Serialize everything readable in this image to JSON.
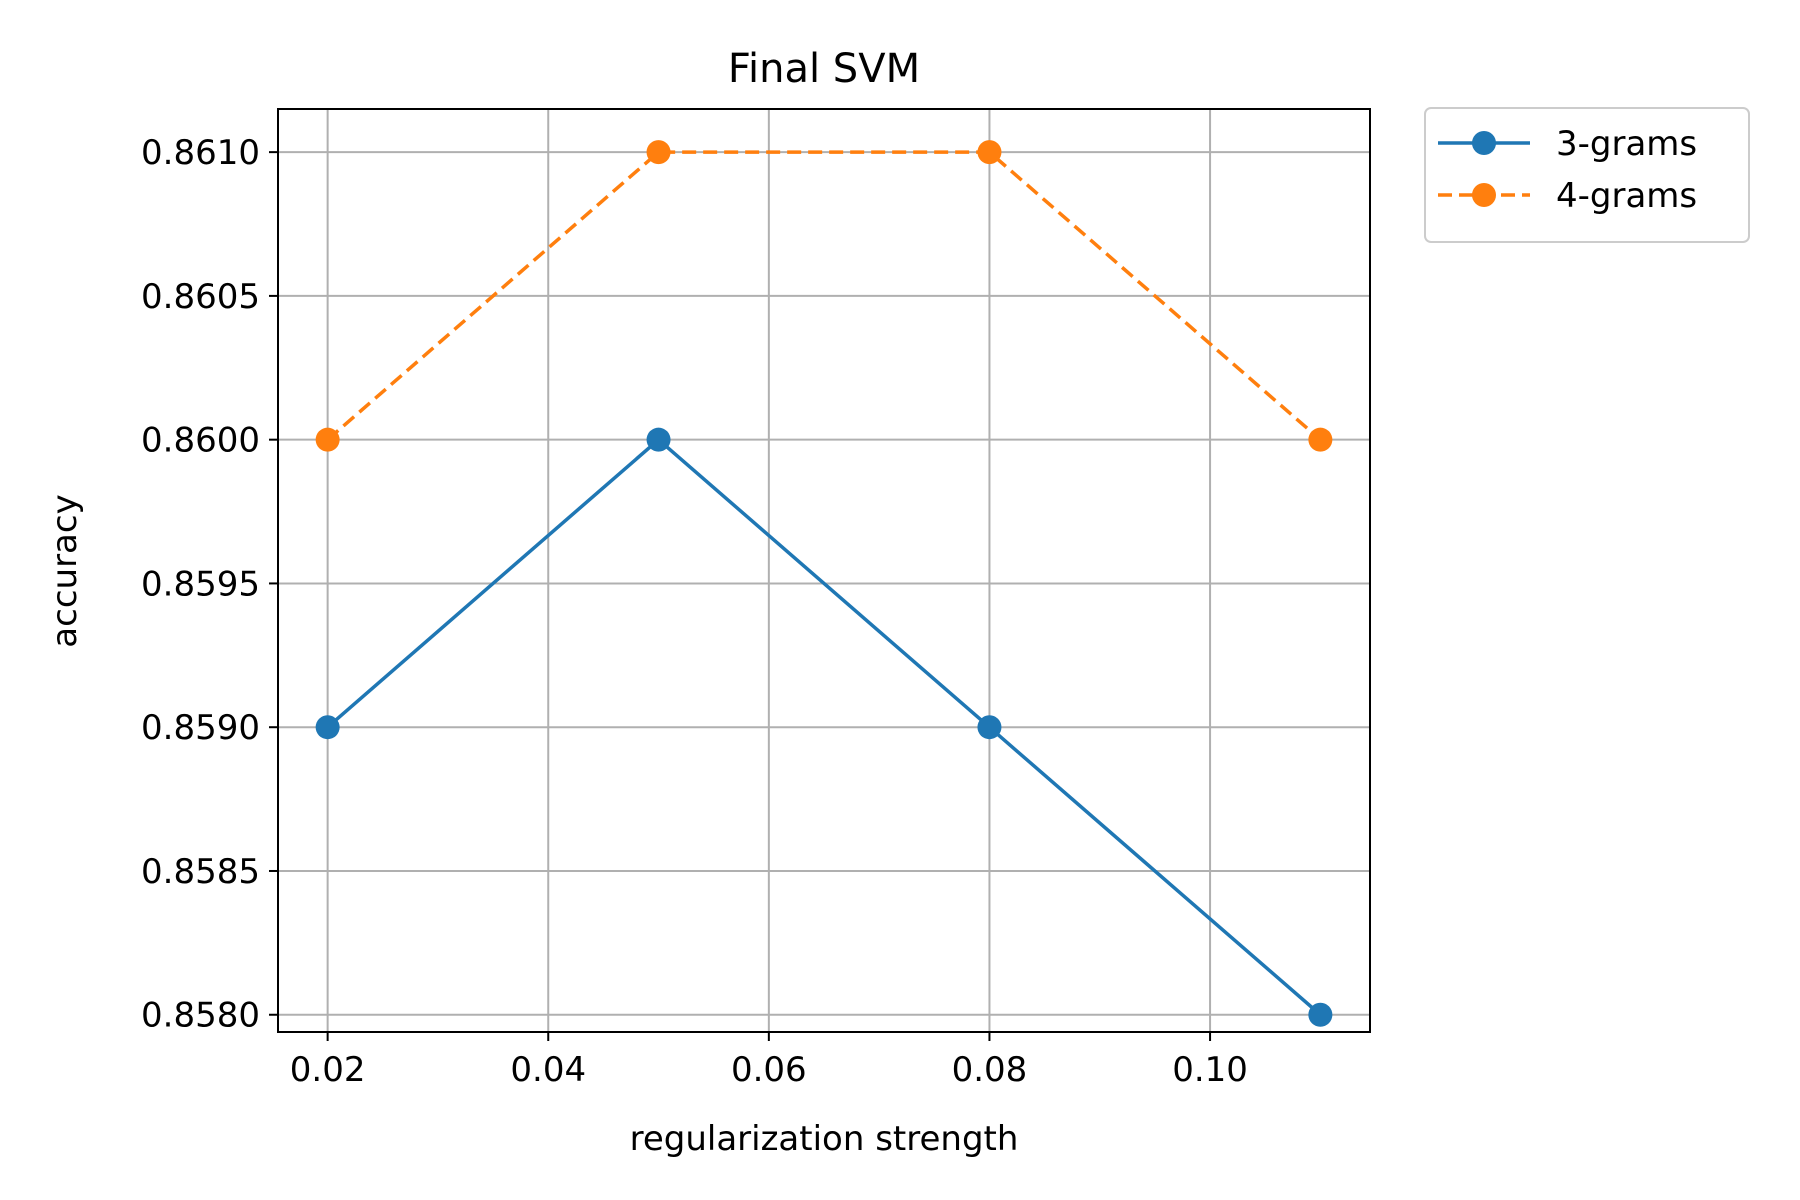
{
  "chart_data": {
    "type": "line",
    "title": "Final SVM",
    "xlabel": "regularization strength",
    "ylabel": "accuracy",
    "x": [
      0.02,
      0.05,
      0.08,
      0.11
    ],
    "xlim": [
      0.0155,
      0.1145
    ],
    "ylim": [
      0.85794,
      0.86115
    ],
    "x_ticks": [
      0.02,
      0.04,
      0.06,
      0.08,
      0.1
    ],
    "x_tick_labels": [
      "0.02",
      "0.04",
      "0.06",
      "0.08",
      "0.10"
    ],
    "y_ticks": [
      0.858,
      0.8585,
      0.859,
      0.8595,
      0.86,
      0.8605,
      0.861
    ],
    "y_tick_labels": [
      "0.8580",
      "0.8585",
      "0.8590",
      "0.8595",
      "0.8600",
      "0.8605",
      "0.8610"
    ],
    "grid": true,
    "legend_position": "outside top-right",
    "series": [
      {
        "name": "3-grams",
        "values": [
          0.859,
          0.86,
          0.859,
          0.858
        ],
        "color": "#1f77b4",
        "line_style": "solid",
        "marker": "circle"
      },
      {
        "name": "4-grams",
        "values": [
          0.86,
          0.861,
          0.861,
          0.86
        ],
        "color": "#ff7f0e",
        "line_style": "dashed",
        "marker": "circle"
      }
    ]
  }
}
